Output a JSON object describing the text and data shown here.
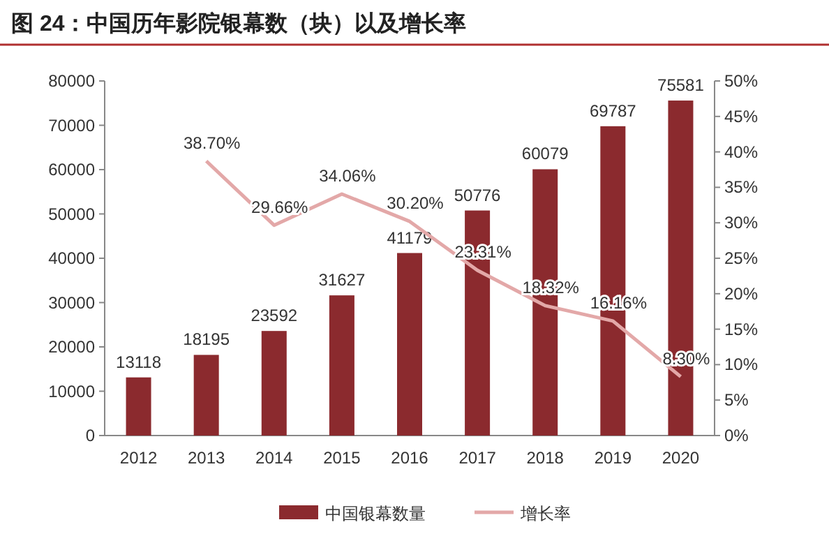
{
  "chart_data": {
    "type": "bar",
    "title": "图 24：中国历年影院银幕数（块）以及增长率",
    "categories": [
      "2012",
      "2013",
      "2014",
      "2015",
      "2016",
      "2017",
      "2018",
      "2019",
      "2020"
    ],
    "series": [
      {
        "name": "中国银幕数量",
        "color": "#8b2a2e",
        "values": [
          13118,
          18195,
          23592,
          31627,
          41179,
          50776,
          60079,
          69787,
          75581
        ],
        "value_labels": [
          "13118",
          "18195",
          "23592",
          "31627",
          "41179",
          "50776",
          "60079",
          "69787",
          "75581"
        ]
      },
      {
        "name": "增长率",
        "type": "line",
        "axis": "y2",
        "color": "#e3a8a8",
        "values": [
          null,
          38.7,
          29.66,
          34.06,
          30.2,
          23.31,
          18.32,
          16.16,
          8.3
        ],
        "value_labels": [
          null,
          "38.70%",
          "29.66%",
          "34.06%",
          "30.20%",
          "23.31%",
          "18.32%",
          "16.16%",
          "8.30%"
        ]
      }
    ],
    "ylim": [
      0,
      80000
    ],
    "yticks": [
      0,
      10000,
      20000,
      30000,
      40000,
      50000,
      60000,
      70000,
      80000
    ],
    "y2lim": [
      0,
      50
    ],
    "y2ticks": [
      {
        "value": 0,
        "label": "0%"
      },
      {
        "value": 5,
        "label": "5%"
      },
      {
        "value": 10,
        "label": "10%"
      },
      {
        "value": 15,
        "label": "15%"
      },
      {
        "value": 20,
        "label": "20%"
      },
      {
        "value": 25,
        "label": "25%"
      },
      {
        "value": 30,
        "label": "30%"
      },
      {
        "value": 35,
        "label": "35%"
      },
      {
        "value": 40,
        "label": "40%"
      },
      {
        "value": 45,
        "label": "45%"
      },
      {
        "value": 50,
        "label": "50%"
      }
    ],
    "legend": "bottom",
    "grid": false
  }
}
